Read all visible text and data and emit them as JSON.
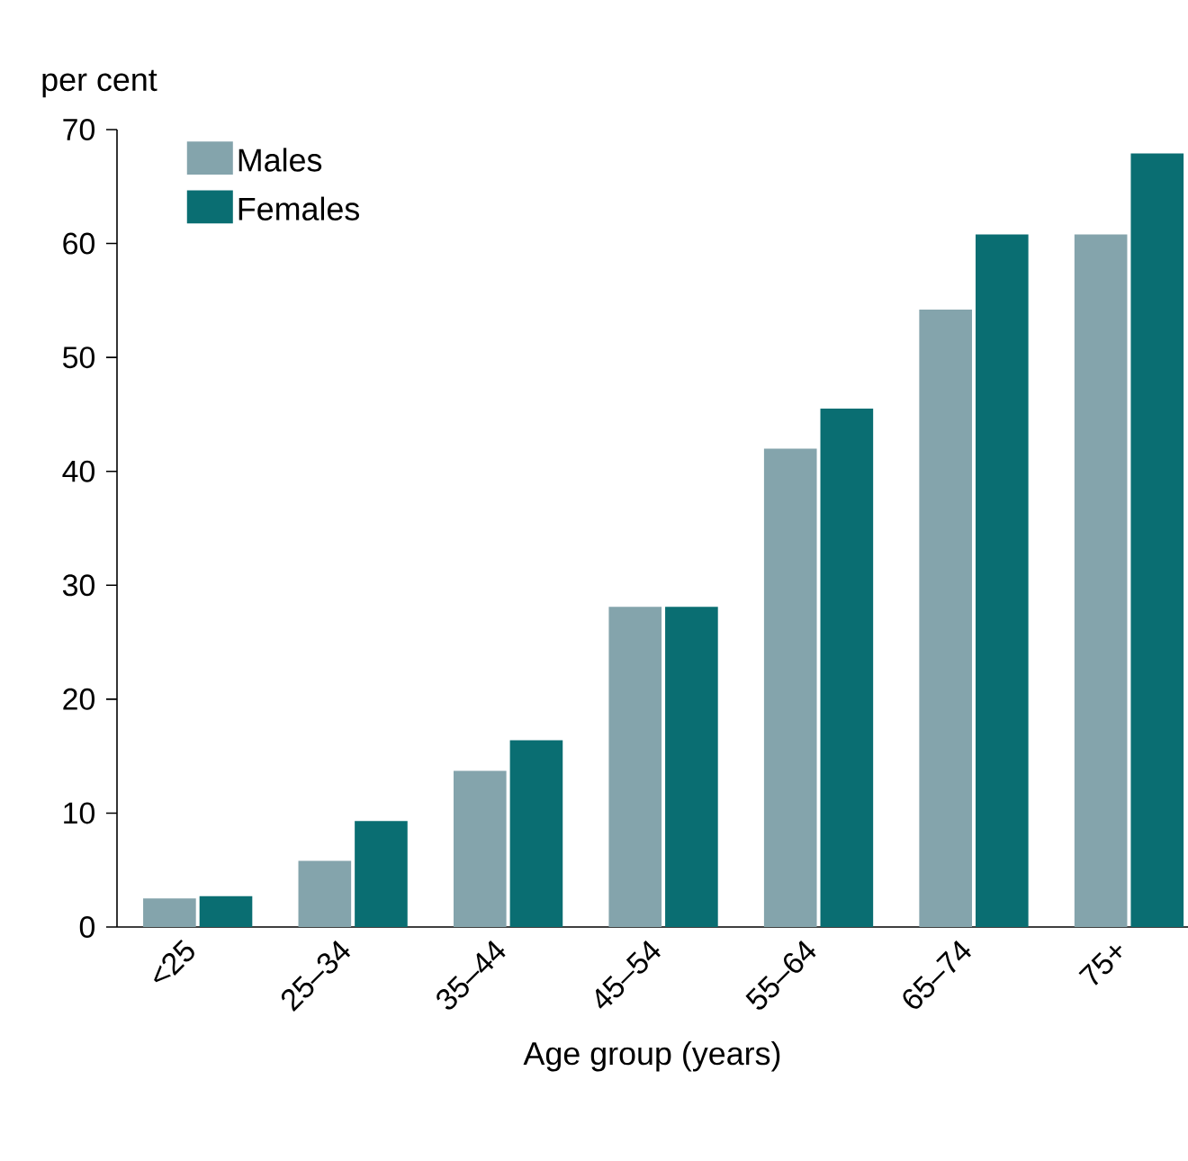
{
  "chart_data": {
    "type": "bar",
    "ylabel": "per cent",
    "xlabel": "Age group (years)",
    "categories": [
      "<25",
      "25–34",
      "35–44",
      "45–54",
      "55–64",
      "65–74",
      "75+"
    ],
    "series": [
      {
        "name": "Males",
        "color": "#84a4ac",
        "values": [
          2.5,
          5.8,
          13.7,
          28.1,
          42.0,
          54.2,
          60.8
        ]
      },
      {
        "name": "Females",
        "color": "#0a6e72",
        "values": [
          2.7,
          9.3,
          16.4,
          28.1,
          45.5,
          60.8,
          67.9
        ]
      }
    ],
    "ylim": [
      0,
      70
    ],
    "yticks": [
      0,
      10,
      20,
      30,
      40,
      50,
      60,
      70
    ],
    "legend": "top left",
    "grid": false
  }
}
